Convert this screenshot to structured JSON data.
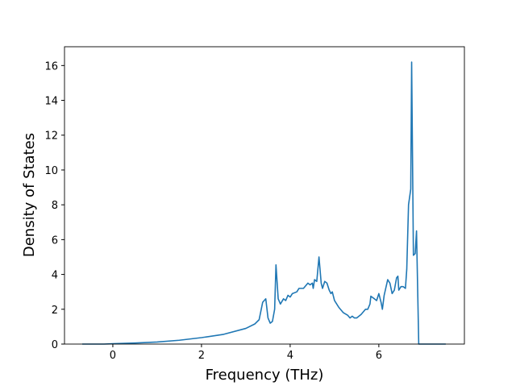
{
  "chart_data": {
    "type": "line",
    "x_label": "Frequency (THz)",
    "y_label": "Density of States",
    "x": [
      -0.69,
      -0.2,
      0,
      0.5,
      1,
      1.5,
      2,
      2.5,
      3.0,
      3.2,
      3.3,
      3.38,
      3.45,
      3.5,
      3.55,
      3.6,
      3.65,
      3.68,
      3.73,
      3.78,
      3.85,
      3.9,
      3.95,
      4.0,
      4.05,
      4.15,
      4.2,
      4.3,
      4.4,
      4.45,
      4.5,
      4.52,
      4.55,
      4.6,
      4.65,
      4.7,
      4.73,
      4.78,
      4.83,
      4.88,
      4.92,
      4.95,
      5.0,
      5.1,
      5.2,
      5.3,
      5.35,
      5.4,
      5.45,
      5.5,
      5.6,
      5.7,
      5.75,
      5.8,
      5.82,
      5.9,
      5.95,
      6.0,
      6.05,
      6.08,
      6.12,
      6.2,
      6.25,
      6.3,
      6.35,
      6.4,
      6.43,
      6.45,
      6.5,
      6.55,
      6.6,
      6.63,
      6.67,
      6.72,
      6.74,
      6.78,
      6.82,
      6.85,
      6.9,
      7.51
    ],
    "series": [
      {
        "color": "#1f77b4",
        "values": [
          0,
          0,
          0.02,
          0.06,
          0.12,
          0.22,
          0.37,
          0.56,
          0.9,
          1.15,
          1.4,
          2.4,
          2.6,
          1.5,
          1.2,
          1.3,
          2.0,
          4.55,
          2.6,
          2.3,
          2.6,
          2.5,
          2.8,
          2.7,
          2.9,
          3.0,
          3.2,
          3.2,
          3.5,
          3.4,
          3.5,
          3.2,
          3.7,
          3.6,
          5.0,
          3.5,
          3.2,
          3.6,
          3.5,
          3.1,
          2.9,
          3.0,
          2.5,
          2.1,
          1.8,
          1.65,
          1.5,
          1.6,
          1.5,
          1.5,
          1.7,
          2.0,
          2.0,
          2.3,
          2.75,
          2.6,
          2.5,
          2.9,
          2.4,
          2.0,
          2.8,
          3.7,
          3.5,
          2.9,
          3.1,
          3.8,
          3.9,
          3.1,
          3.3,
          3.3,
          3.2,
          4.3,
          8.0,
          8.9,
          16.2,
          5.1,
          5.2,
          6.5,
          0,
          0
        ]
      }
    ],
    "xlim": [
      -1.09,
      7.93
    ],
    "ylim": [
      0,
      17.08
    ],
    "xticks": [
      0,
      2,
      4,
      6
    ],
    "yticks": [
      0,
      2,
      4,
      6,
      8,
      10,
      12,
      14,
      16
    ]
  }
}
